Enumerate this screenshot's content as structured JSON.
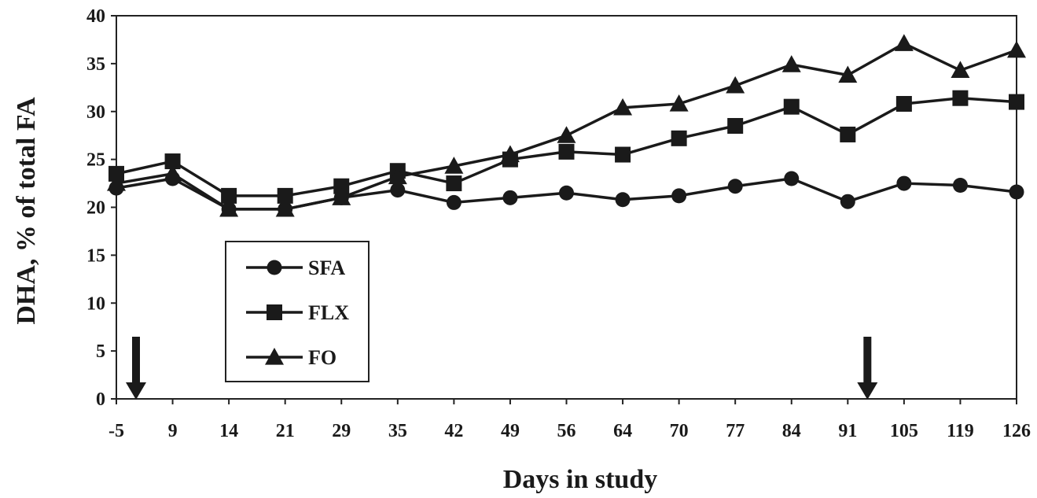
{
  "chart_data": {
    "type": "line",
    "title": "",
    "xlabel": "Days in study",
    "ylabel": "DHA, % of total FA",
    "ylim": [
      0,
      40
    ],
    "yticks": [
      "0",
      "5",
      "10",
      "15",
      "20",
      "25",
      "30",
      "35",
      "40"
    ],
    "categories": [
      "-5",
      "9",
      "14",
      "21",
      "29",
      "35",
      "42",
      "49",
      "56",
      "64",
      "70",
      "77",
      "84",
      "91",
      "105",
      "119",
      "126"
    ],
    "grid": false,
    "legend_position": "left",
    "series": [
      {
        "name": "SFA",
        "marker": "circle",
        "values": [
          22.0,
          23.0,
          19.8,
          19.8,
          21.0,
          21.8,
          20.5,
          21.0,
          21.5,
          20.8,
          21.2,
          22.2,
          23.0,
          20.6,
          22.5,
          22.3,
          21.6
        ]
      },
      {
        "name": "FLX",
        "marker": "square",
        "values": [
          23.5,
          24.8,
          21.2,
          21.2,
          22.2,
          23.8,
          22.5,
          25.0,
          25.8,
          25.5,
          27.2,
          28.5,
          30.5,
          27.6,
          30.8,
          31.4,
          31.0
        ]
      },
      {
        "name": "FO",
        "marker": "triangle",
        "values": [
          22.5,
          23.5,
          19.8,
          19.8,
          21.0,
          23.2,
          24.3,
          25.5,
          27.5,
          30.4,
          30.8,
          32.7,
          34.9,
          33.8,
          37.1,
          34.3,
          36.4
        ]
      }
    ],
    "annotations": [
      {
        "type": "arrow-down",
        "x_value": -5
      },
      {
        "type": "arrow-down",
        "x_value": 91
      }
    ]
  }
}
